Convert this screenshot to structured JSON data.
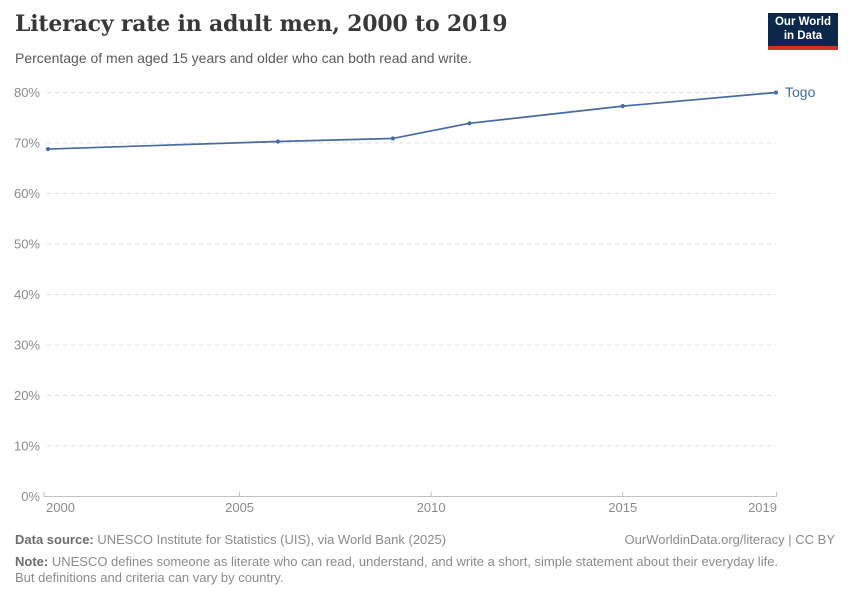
{
  "header": {
    "title": "Literacy rate in adult men, 2000 to 2019",
    "subtitle": "Percentage of men aged 15 years and older who can both read and write.",
    "logo": {
      "line1": "Our World",
      "line2": "in Data",
      "bg_color": "#0c2849",
      "accent_color": "#cf342b"
    }
  },
  "chart_data": {
    "type": "line",
    "title": "Literacy rate in adult men, 2000 to 2019",
    "xlabel": "",
    "ylabel": "",
    "xlim": [
      2000,
      2019
    ],
    "ylim": [
      0,
      80
    ],
    "x_ticks": [
      2000,
      2005,
      2010,
      2015,
      2019
    ],
    "y_ticks": [
      0,
      10,
      20,
      30,
      40,
      50,
      60,
      70,
      80
    ],
    "y_tick_suffix": "%",
    "grid": "horizontal-dashed",
    "grid_color": "#dddddd",
    "axis_color": "#c2c2c2",
    "legend": "end-of-line-label",
    "series": [
      {
        "name": "Togo",
        "color": "#476a9f",
        "label_color": "#3c6daa",
        "points": [
          [
            2000,
            68.8
          ],
          [
            2006,
            70.3
          ],
          [
            2009,
            70.9
          ],
          [
            2011,
            73.9
          ],
          [
            2015,
            77.3
          ],
          [
            2019,
            80.0
          ]
        ]
      }
    ]
  },
  "footer": {
    "datasource_label": "Data source:",
    "datasource_text": " UNESCO Institute for Statistics (UIS), via World Bank (2025)",
    "rights": "OurWorldinData.org/literacy | CC BY",
    "note_label": "Note:",
    "note_text": " UNESCO defines someone as literate who can read, understand, and write a short, simple statement about their everyday life. But definitions and criteria can vary by country."
  }
}
